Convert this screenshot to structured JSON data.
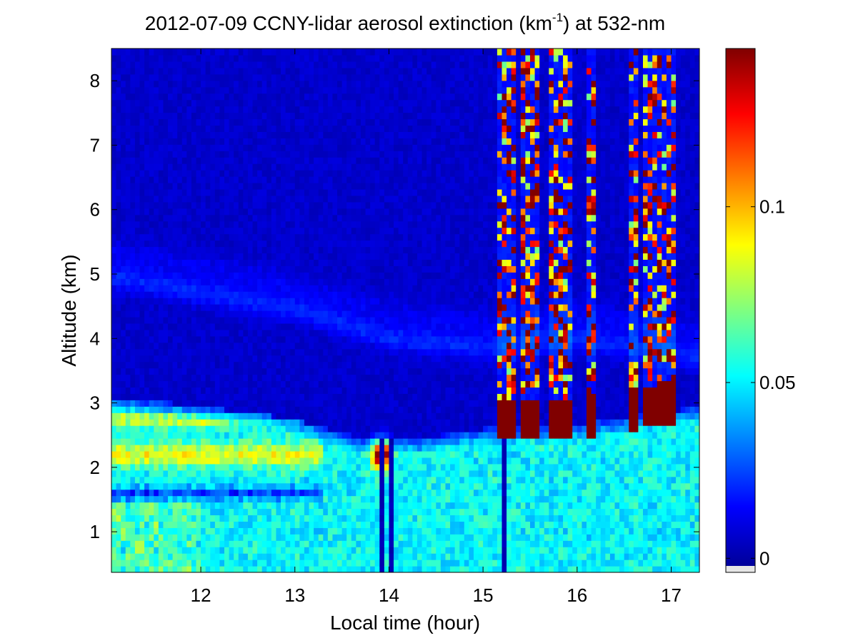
{
  "chart_data": {
    "type": "heatmap",
    "title": "2012-07-09 CCNY-lidar aerosol extinction (km",
    "title_superscript": "-1",
    "title_suffix": ") at 532-nm",
    "xlabel": "Local time (hour)",
    "ylabel": "Altitude (km)",
    "xlim": [
      11.05,
      17.3
    ],
    "ylim": [
      0.37,
      8.5
    ],
    "x_ticks": [
      12,
      13,
      14,
      15,
      16,
      17
    ],
    "y_ticks": [
      1,
      2,
      3,
      4,
      5,
      6,
      7,
      8
    ],
    "colorbar": {
      "colormap": "jet",
      "clim": [
        -0.004,
        0.145
      ],
      "ticks": [
        0,
        0.05,
        0.1
      ],
      "tick_labels": [
        "0",
        "0.05",
        "0.1"
      ]
    },
    "features": {
      "boundary_layer_top_km": [
        {
          "x": 11.05,
          "y": 3.1
        },
        {
          "x": 12.0,
          "y": 2.95
        },
        {
          "x": 13.0,
          "y": 2.75
        },
        {
          "x": 13.7,
          "y": 2.45
        },
        {
          "x": 14.3,
          "y": 2.45
        },
        {
          "x": 15.0,
          "y": 2.6
        },
        {
          "x": 16.0,
          "y": 2.65
        },
        {
          "x": 17.3,
          "y": 2.95
        }
      ],
      "elevated_layer_km": [
        {
          "x": 11.05,
          "y": 4.95
        },
        {
          "x": 12.0,
          "y": 4.7
        },
        {
          "x": 13.0,
          "y": 4.45
        },
        {
          "x": 14.0,
          "y": 4.0
        },
        {
          "x": 15.0,
          "y": 3.85
        },
        {
          "x": 16.0,
          "y": 4.0
        },
        {
          "x": 17.3,
          "y": 3.7
        }
      ],
      "cloud_columns_hour": [
        15.2,
        15.3,
        15.45,
        15.55,
        15.75,
        15.85,
        15.92,
        16.15,
        16.6,
        16.75,
        16.85,
        16.95,
        17.02
      ],
      "clear_stripes_hour": [
        13.92,
        14.02,
        14.3,
        15.15,
        15.22,
        15.6,
        16.45,
        16.7,
        16.95,
        17.05
      ],
      "high_extinction_patch": {
        "x": 13.92,
        "y": 2.2
      }
    }
  }
}
